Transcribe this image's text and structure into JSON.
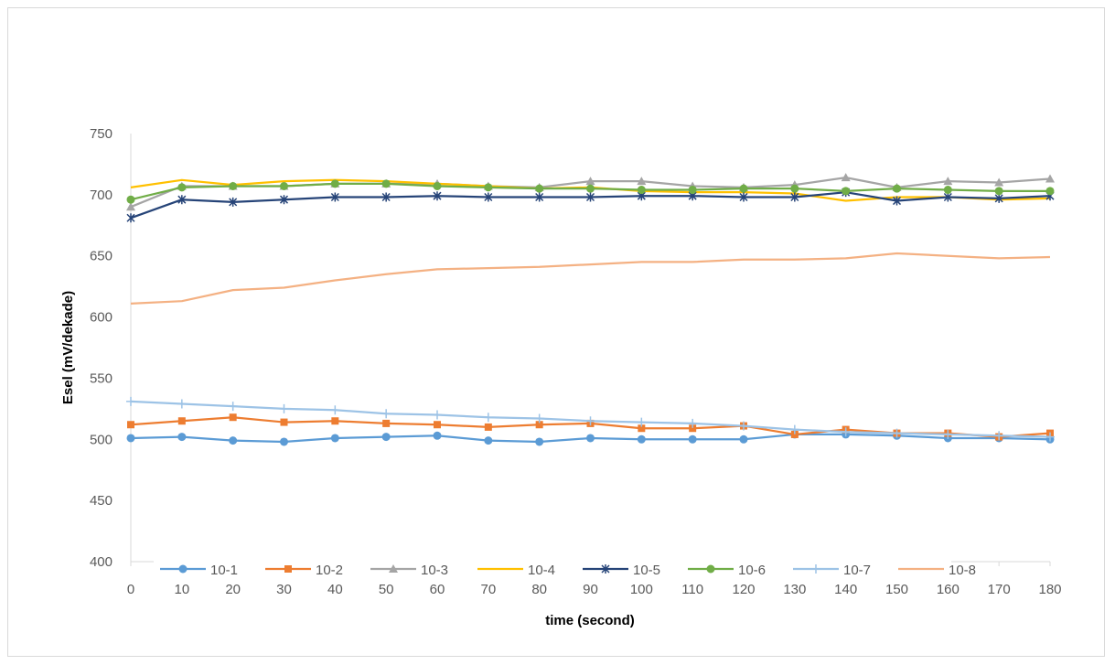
{
  "chart_data": {
    "type": "line",
    "title": "",
    "xlabel": "time (second)",
    "ylabel": "Esel (mV/dekade)",
    "categories": [
      "0",
      "10",
      "20",
      "30",
      "40",
      "50",
      "60",
      "70",
      "80",
      "90",
      "100",
      "110",
      "120",
      "130",
      "140",
      "150",
      "160",
      "170",
      "180"
    ],
    "ylim": [
      400,
      750
    ],
    "yticks": [
      "400",
      "450",
      "500",
      "550",
      "600",
      "650",
      "700",
      "750"
    ],
    "grid": false,
    "legend_position": "bottom-inside",
    "series": [
      {
        "name": "10-1",
        "color": "#5b9bd5",
        "marker": "circle",
        "values": [
          501,
          502,
          499,
          498,
          501,
          502,
          503,
          499,
          498,
          501,
          500,
          500,
          500,
          504,
          504,
          503,
          501,
          501,
          500
        ]
      },
      {
        "name": "10-2",
        "color": "#ed7d31",
        "marker": "square",
        "values": [
          512,
          515,
          518,
          514,
          515,
          513,
          512,
          510,
          512,
          513,
          509,
          509,
          511,
          504,
          508,
          505,
          505,
          502,
          505
        ]
      },
      {
        "name": "10-3",
        "color": "#a5a5a5",
        "marker": "triangle",
        "values": [
          690,
          707,
          707,
          707,
          709,
          709,
          709,
          707,
          706,
          711,
          711,
          707,
          706,
          708,
          714,
          706,
          711,
          710,
          713
        ]
      },
      {
        "name": "10-4",
        "color": "#ffc000",
        "marker": "none",
        "values": [
          706,
          712,
          708,
          711,
          712,
          711,
          709,
          707,
          705,
          706,
          703,
          702,
          702,
          701,
          695,
          698,
          698,
          696,
          697
        ]
      },
      {
        "name": "10-5",
        "color": "#264478",
        "marker": "star",
        "values": [
          681,
          696,
          694,
          696,
          698,
          698,
          699,
          698,
          698,
          698,
          699,
          699,
          698,
          698,
          702,
          695,
          698,
          697,
          699
        ]
      },
      {
        "name": "10-6",
        "color": "#70ad47",
        "marker": "circle",
        "values": [
          696,
          706,
          707,
          707,
          709,
          709,
          707,
          706,
          705,
          705,
          704,
          704,
          705,
          705,
          703,
          705,
          704,
          703,
          703
        ]
      },
      {
        "name": "10-7",
        "color": "#9dc3e6",
        "marker": "plus",
        "values": [
          531,
          529,
          527,
          525,
          524,
          521,
          520,
          518,
          517,
          515,
          514,
          513,
          511,
          508,
          506,
          505,
          504,
          503,
          502
        ]
      },
      {
        "name": "10-8",
        "color": "#f4b183",
        "marker": "none",
        "values": [
          611,
          613,
          622,
          624,
          630,
          635,
          639,
          640,
          641,
          643,
          645,
          645,
          647,
          647,
          648,
          652,
          650,
          648,
          649
        ]
      }
    ]
  }
}
